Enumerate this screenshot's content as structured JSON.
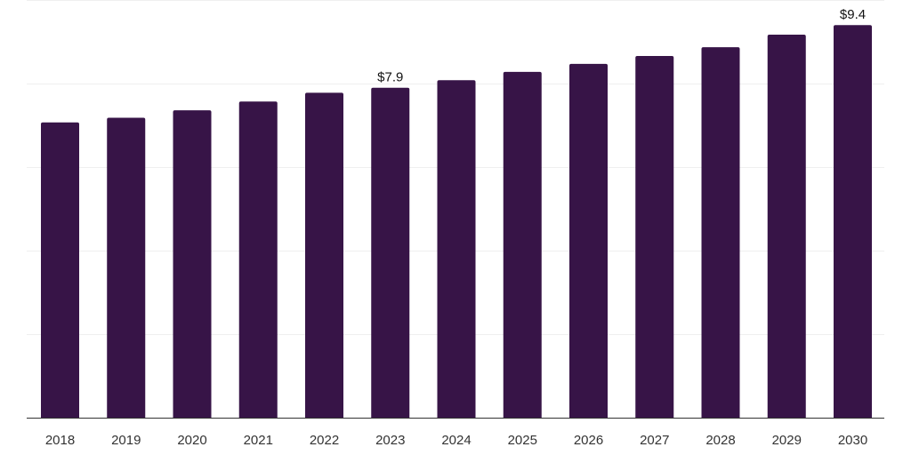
{
  "chart_data": {
    "type": "bar",
    "title": "",
    "xlabel": "",
    "ylabel": "",
    "categories": [
      "2018",
      "2019",
      "2020",
      "2021",
      "2022",
      "2023",
      "2024",
      "2025",
      "2026",
      "2027",
      "2028",
      "2029",
      "2030"
    ],
    "values": [
      7.07,
      7.18,
      7.36,
      7.57,
      7.78,
      7.9,
      8.08,
      8.28,
      8.47,
      8.66,
      8.87,
      9.17,
      9.4
    ],
    "ylim": [
      0,
      10
    ],
    "y_gridlines": [
      0,
      2,
      4,
      6,
      8,
      10
    ],
    "y_tick_labels_shown": false,
    "grid": true,
    "legend": "none",
    "bar_color": "#371447",
    "data_labels": [
      {
        "category": "2023",
        "text": "$7.9"
      },
      {
        "category": "2030",
        "text": "$9.4"
      }
    ]
  }
}
